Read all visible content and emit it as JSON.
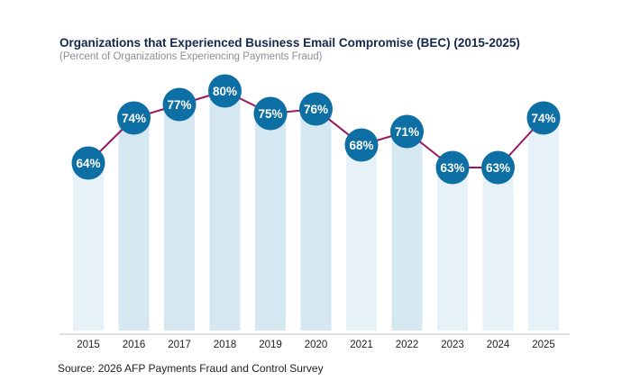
{
  "chart_data": {
    "type": "bar+line",
    "title": "Organizations that Experienced Business Email Compromise (BEC) (2015-2025)",
    "subtitle": "(Percent of Organizations Experiencing Payments Fraud)",
    "categories": [
      "2015",
      "2016",
      "2017",
      "2018",
      "2019",
      "2020",
      "2021",
      "2022",
      "2023",
      "2024",
      "2025"
    ],
    "values": [
      64,
      74,
      77,
      80,
      75,
      76,
      68,
      71,
      63,
      63,
      74
    ],
    "labels": [
      "64%",
      "74%",
      "77%",
      "80%",
      "75%",
      "76%",
      "68%",
      "71%",
      "63%",
      "63%",
      "74%"
    ],
    "grid": false,
    "colors": {
      "bar_light": "#e7f1f8",
      "bar_dark": "#d5e7f1",
      "marker": "#0d6fa3",
      "line": "#9b1760",
      "axis": "#c9c9c9"
    },
    "bar_shade": [
      "light",
      "dark",
      "dark",
      "dark",
      "dark",
      "dark",
      "light",
      "dark",
      "light",
      "light",
      "light"
    ]
  },
  "source": "Source: 2026 AFP Payments Fraud and Control Survey"
}
